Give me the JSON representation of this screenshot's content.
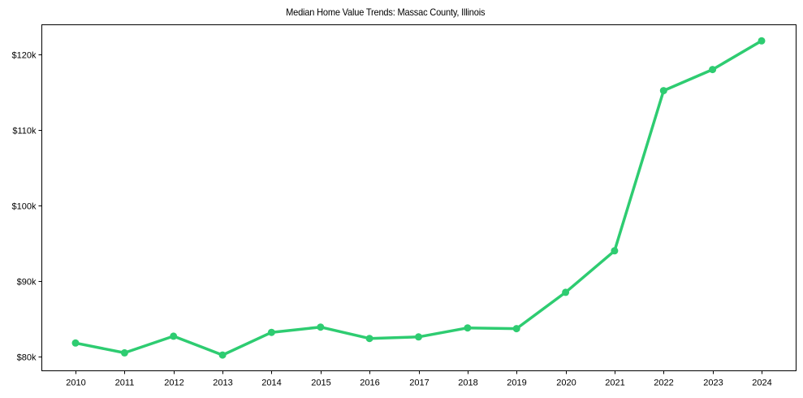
{
  "chart_data": {
    "type": "line",
    "title": "Median Home Value Trends: Massac County, Illinois",
    "xlabel": "",
    "ylabel": "",
    "categories": [
      "2010",
      "2011",
      "2012",
      "2013",
      "2014",
      "2015",
      "2016",
      "2017",
      "2018",
      "2019",
      "2020",
      "2021",
      "2022",
      "2023",
      "2024"
    ],
    "series": [
      {
        "name": "Median Home Value",
        "color": "#2ecc71",
        "values": [
          81800,
          80500,
          82700,
          80200,
          83200,
          83900,
          82400,
          82600,
          83800,
          83700,
          88500,
          94000,
          115200,
          118000,
          121800
        ]
      }
    ],
    "yticks": [
      80000,
      90000,
      100000,
      110000,
      120000
    ],
    "ytick_labels": [
      "$80k",
      "$90k",
      "$100k",
      "$110k",
      "$120k"
    ],
    "ylim": [
      78200,
      123900
    ],
    "grid": false,
    "legend": null
  }
}
